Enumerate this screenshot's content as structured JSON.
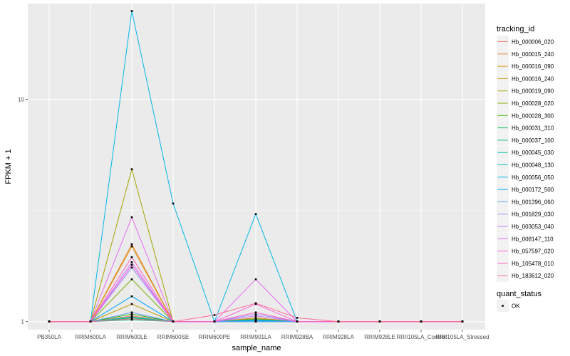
{
  "chart_data": {
    "type": "line",
    "xlabel": "sample_name",
    "ylabel": "FPKM + 1",
    "y_scale": "log",
    "ylim": [
      0.92,
      27
    ],
    "y_ticks": [
      {
        "value": 1,
        "label": "1"
      },
      {
        "value": 10,
        "label": "10"
      }
    ],
    "grid": true,
    "legend_position": "right",
    "categories": [
      "PB350LA",
      "RRIM600LA",
      "RRIM600LE",
      "RRIM600SE",
      "RRIM600PE",
      "RRIM901LA",
      "RRIM928BA",
      "RRIM928LA",
      "RRIM928LE",
      "RRII105LA_Control",
      "RRII105LA_Stressed"
    ],
    "legend_title": "tracking_id",
    "series": [
      {
        "name": "Hb_000006_020",
        "color": "#F8766D",
        "values": [
          1,
          1,
          1.06,
          1,
          1,
          1.03,
          1,
          1,
          1,
          1,
          1
        ]
      },
      {
        "name": "Hb_000015_240",
        "color": "#EA8331",
        "values": [
          1,
          1,
          2.23,
          1,
          1,
          1.04,
          1,
          1,
          1,
          1,
          1
        ]
      },
      {
        "name": "Hb_000016_090",
        "color": "#D89000",
        "values": [
          1,
          1,
          2.18,
          1,
          1,
          1.02,
          1,
          1,
          1,
          1,
          1
        ]
      },
      {
        "name": "Hb_000016_240",
        "color": "#C09B00",
        "values": [
          1,
          1,
          1.2,
          1,
          1,
          1.01,
          1,
          1,
          1,
          1,
          1
        ]
      },
      {
        "name": "Hb_000019_090",
        "color": "#A3A500",
        "values": [
          1,
          1,
          4.85,
          1,
          1,
          1.02,
          1,
          1,
          1,
          1,
          1
        ]
      },
      {
        "name": "Hb_000028_020",
        "color": "#7CAE00",
        "values": [
          1,
          1,
          1.55,
          1,
          1,
          1.03,
          1,
          1,
          1,
          1,
          1
        ]
      },
      {
        "name": "Hb_000028_300",
        "color": "#39B600",
        "values": [
          1,
          1,
          1.08,
          1,
          1,
          1.01,
          1,
          1,
          1,
          1,
          1
        ]
      },
      {
        "name": "Hb_000031_310",
        "color": "#00BB4E",
        "values": [
          1,
          1,
          1.04,
          1,
          1,
          1.0,
          1,
          1,
          1,
          1,
          1
        ]
      },
      {
        "name": "Hb_000037_100",
        "color": "#00BF7D",
        "values": [
          1,
          1,
          1.02,
          1,
          1,
          1.01,
          1,
          1,
          1,
          1,
          1
        ]
      },
      {
        "name": "Hb_000045_030",
        "color": "#00C1A3",
        "values": [
          1,
          1,
          1.03,
          1,
          1,
          1.01,
          1,
          1,
          1,
          1,
          1
        ]
      },
      {
        "name": "Hb_000048_130",
        "color": "#00BFC4",
        "values": [
          1,
          1,
          1.05,
          1,
          1,
          1.02,
          1,
          1,
          1,
          1,
          1
        ]
      },
      {
        "name": "Hb_000056_050",
        "color": "#00B8E7",
        "values": [
          1,
          1,
          25.0,
          3.4,
          1,
          3.05,
          1,
          1,
          1,
          1,
          1
        ]
      },
      {
        "name": "Hb_000172_500",
        "color": "#00A9FF",
        "values": [
          1,
          1,
          1.3,
          1,
          1,
          1.01,
          1,
          1,
          1,
          1,
          1
        ]
      },
      {
        "name": "Hb_001396_060",
        "color": "#619CFF",
        "values": [
          1,
          1,
          1.1,
          1,
          1,
          1.0,
          1,
          1,
          1,
          1,
          1
        ]
      },
      {
        "name": "Hb_001829_030",
        "color": "#9590FF",
        "values": [
          1,
          1,
          1.75,
          1,
          1,
          1.08,
          1,
          1,
          1,
          1,
          1
        ]
      },
      {
        "name": "Hb_003053_040",
        "color": "#C77CFF",
        "values": [
          1,
          1,
          1.85,
          1,
          1,
          1.06,
          1,
          1,
          1,
          1,
          1
        ]
      },
      {
        "name": "Hb_008147_110",
        "color": "#E76BF3",
        "values": [
          1,
          1,
          2.95,
          1,
          1,
          1.55,
          1,
          1,
          1,
          1,
          1
        ]
      },
      {
        "name": "Hb_057597_020",
        "color": "#FA62DB",
        "values": [
          1,
          1,
          1.8,
          1,
          1,
          1.2,
          1,
          1,
          1,
          1,
          1
        ]
      },
      {
        "name": "Hb_105478_010",
        "color": "#FF62BC",
        "values": [
          1,
          1,
          1.95,
          1,
          1,
          1.1,
          1,
          1,
          1,
          1,
          1
        ]
      },
      {
        "name": "Hb_183612_020",
        "color": "#FF6C91",
        "values": [
          1,
          1,
          1.03,
          1,
          1.07,
          1.21,
          1.04,
          1,
          1,
          1,
          1
        ]
      }
    ],
    "legend2_title": "quant_status",
    "legend2_items": [
      {
        "label": "OK"
      }
    ]
  }
}
